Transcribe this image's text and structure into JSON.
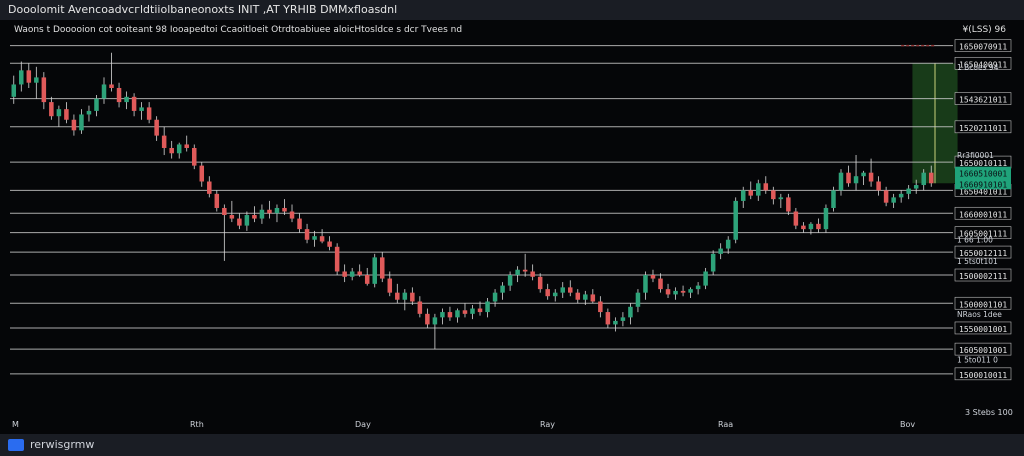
{
  "window": {
    "title": "Dooolomit Avencoadvcгldtiiolbaneonoxts INIT ,AT YRHIB DMMxfloasdnl"
  },
  "toolbar": {
    "legend_text": "Waons  t  Dooooion  cot ooiteant  98 Iooapedtoi  Ccaoitloeit  Otrdtoabiuee  aloicHtosldce  s dcr  Tvees  nd"
  },
  "footer": {
    "brand": "rerwisgrmw"
  },
  "chart_data": {
    "type": "candlestick",
    "price_axis_header": "¥(LSS) 96",
    "price_levels": [
      {
        "label": "1650070911",
        "y": 1650
      },
      {
        "label": "1650400911",
        "y": 1600
      },
      {
        "label": "1543621011",
        "y": 1500
      },
      {
        "label": "1520211011",
        "y": 1420
      },
      {
        "label": "1650010111",
        "y": 1320
      },
      {
        "label": "1650401011",
        "y": 1240
      },
      {
        "label": "1660001011",
        "y": 1175
      },
      {
        "label": "1605001111",
        "y": 1120
      },
      {
        "label": "1650012111",
        "y": 1065
      },
      {
        "label": "1500002111",
        "y": 1000
      },
      {
        "label": "1500001101",
        "y": 920
      },
      {
        "label": "1550001001",
        "y": 850
      },
      {
        "label": "1605001001",
        "y": 790
      },
      {
        "label": "1500010011",
        "y": 720
      }
    ],
    "side_notes": [
      {
        "text": "1 Bcoes 94",
        "y": 1590
      },
      {
        "text": "Rr3fi0001",
        "y": 1340
      },
      {
        "text": "1 66 1:00",
        "y": 1100
      },
      {
        "text": "1 5ts0t101",
        "y": 1040
      },
      {
        "text": "NRaos 1dee",
        "y": 890
      },
      {
        "text": "1 5to011 0",
        "y": 760
      }
    ],
    "highlight_labels": [
      {
        "text": "1660510001",
        "y": 1290
      },
      {
        "text": "1660910101",
        "y": 1260
      }
    ],
    "x_labels": [
      "M",
      "Rth",
      "Day",
      "Ray",
      "Raa",
      "Bov"
    ],
    "x_right_label": "3 Stebs 100",
    "ylim": [
      660,
      1700
    ],
    "colors": {
      "up": "#2ea37a",
      "down": "#e05a5a",
      "grid": "#c8c8c8",
      "target": "#8a2f2f",
      "zone": "#1f4d1f",
      "highlight": "#1fa37a"
    },
    "candles": [
      {
        "o": 1505,
        "h": 1565,
        "l": 1485,
        "c": 1540
      },
      {
        "o": 1540,
        "h": 1605,
        "l": 1520,
        "c": 1580
      },
      {
        "o": 1580,
        "h": 1600,
        "l": 1530,
        "c": 1545
      },
      {
        "o": 1545,
        "h": 1590,
        "l": 1500,
        "c": 1560
      },
      {
        "o": 1560,
        "h": 1575,
        "l": 1470,
        "c": 1490
      },
      {
        "o": 1490,
        "h": 1505,
        "l": 1440,
        "c": 1450
      },
      {
        "o": 1450,
        "h": 1480,
        "l": 1420,
        "c": 1470
      },
      {
        "o": 1470,
        "h": 1490,
        "l": 1430,
        "c": 1440
      },
      {
        "o": 1440,
        "h": 1455,
        "l": 1395,
        "c": 1410
      },
      {
        "o": 1410,
        "h": 1470,
        "l": 1400,
        "c": 1455
      },
      {
        "o": 1455,
        "h": 1480,
        "l": 1435,
        "c": 1465
      },
      {
        "o": 1465,
        "h": 1510,
        "l": 1450,
        "c": 1500
      },
      {
        "o": 1500,
        "h": 1560,
        "l": 1485,
        "c": 1540
      },
      {
        "o": 1540,
        "h": 1630,
        "l": 1520,
        "c": 1530
      },
      {
        "o": 1530,
        "h": 1545,
        "l": 1475,
        "c": 1490
      },
      {
        "o": 1490,
        "h": 1520,
        "l": 1470,
        "c": 1505
      },
      {
        "o": 1505,
        "h": 1515,
        "l": 1450,
        "c": 1465
      },
      {
        "o": 1465,
        "h": 1490,
        "l": 1440,
        "c": 1475
      },
      {
        "o": 1475,
        "h": 1490,
        "l": 1430,
        "c": 1440
      },
      {
        "o": 1440,
        "h": 1450,
        "l": 1380,
        "c": 1395
      },
      {
        "o": 1395,
        "h": 1420,
        "l": 1340,
        "c": 1360
      },
      {
        "o": 1360,
        "h": 1380,
        "l": 1330,
        "c": 1345
      },
      {
        "o": 1345,
        "h": 1375,
        "l": 1330,
        "c": 1370
      },
      {
        "o": 1370,
        "h": 1395,
        "l": 1350,
        "c": 1360
      },
      {
        "o": 1360,
        "h": 1370,
        "l": 1300,
        "c": 1310
      },
      {
        "o": 1310,
        "h": 1320,
        "l": 1250,
        "c": 1265
      },
      {
        "o": 1265,
        "h": 1280,
        "l": 1220,
        "c": 1230
      },
      {
        "o": 1230,
        "h": 1240,
        "l": 1180,
        "c": 1190
      },
      {
        "o": 1190,
        "h": 1200,
        "l": 1040,
        "c": 1170
      },
      {
        "o": 1170,
        "h": 1210,
        "l": 1150,
        "c": 1160
      },
      {
        "o": 1160,
        "h": 1175,
        "l": 1130,
        "c": 1140
      },
      {
        "o": 1140,
        "h": 1180,
        "l": 1125,
        "c": 1170
      },
      {
        "o": 1170,
        "h": 1195,
        "l": 1150,
        "c": 1160
      },
      {
        "o": 1160,
        "h": 1200,
        "l": 1145,
        "c": 1185
      },
      {
        "o": 1185,
        "h": 1210,
        "l": 1160,
        "c": 1175
      },
      {
        "o": 1175,
        "h": 1200,
        "l": 1150,
        "c": 1190
      },
      {
        "o": 1190,
        "h": 1215,
        "l": 1170,
        "c": 1180
      },
      {
        "o": 1180,
        "h": 1200,
        "l": 1150,
        "c": 1160
      },
      {
        "o": 1160,
        "h": 1175,
        "l": 1120,
        "c": 1130
      },
      {
        "o": 1130,
        "h": 1145,
        "l": 1090,
        "c": 1100
      },
      {
        "o": 1100,
        "h": 1125,
        "l": 1080,
        "c": 1110
      },
      {
        "o": 1110,
        "h": 1130,
        "l": 1090,
        "c": 1095
      },
      {
        "o": 1095,
        "h": 1110,
        "l": 1070,
        "c": 1080
      },
      {
        "o": 1080,
        "h": 1090,
        "l": 1000,
        "c": 1010
      },
      {
        "o": 1010,
        "h": 1030,
        "l": 980,
        "c": 995
      },
      {
        "o": 995,
        "h": 1020,
        "l": 985,
        "c": 1010
      },
      {
        "o": 1010,
        "h": 1030,
        "l": 995,
        "c": 1000
      },
      {
        "o": 1000,
        "h": 1020,
        "l": 970,
        "c": 975
      },
      {
        "o": 975,
        "h": 1060,
        "l": 965,
        "c": 1050
      },
      {
        "o": 1050,
        "h": 1065,
        "l": 980,
        "c": 990
      },
      {
        "o": 990,
        "h": 1010,
        "l": 940,
        "c": 950
      },
      {
        "o": 950,
        "h": 975,
        "l": 920,
        "c": 930
      },
      {
        "o": 930,
        "h": 960,
        "l": 900,
        "c": 950
      },
      {
        "o": 950,
        "h": 965,
        "l": 915,
        "c": 925
      },
      {
        "o": 925,
        "h": 940,
        "l": 880,
        "c": 890
      },
      {
        "o": 890,
        "h": 905,
        "l": 850,
        "c": 860
      },
      {
        "o": 860,
        "h": 890,
        "l": 790,
        "c": 880
      },
      {
        "o": 880,
        "h": 905,
        "l": 860,
        "c": 895
      },
      {
        "o": 895,
        "h": 910,
        "l": 870,
        "c": 880
      },
      {
        "o": 880,
        "h": 905,
        "l": 865,
        "c": 900
      },
      {
        "o": 900,
        "h": 920,
        "l": 880,
        "c": 890
      },
      {
        "o": 890,
        "h": 915,
        "l": 875,
        "c": 905
      },
      {
        "o": 905,
        "h": 925,
        "l": 885,
        "c": 895
      },
      {
        "o": 895,
        "h": 935,
        "l": 880,
        "c": 925
      },
      {
        "o": 925,
        "h": 960,
        "l": 910,
        "c": 950
      },
      {
        "o": 950,
        "h": 980,
        "l": 930,
        "c": 970
      },
      {
        "o": 970,
        "h": 1010,
        "l": 955,
        "c": 1000
      },
      {
        "o": 1000,
        "h": 1025,
        "l": 980,
        "c": 1015
      },
      {
        "o": 1015,
        "h": 1060,
        "l": 995,
        "c": 1010
      },
      {
        "o": 1010,
        "h": 1030,
        "l": 985,
        "c": 995
      },
      {
        "o": 995,
        "h": 1005,
        "l": 950,
        "c": 960
      },
      {
        "o": 960,
        "h": 975,
        "l": 930,
        "c": 940
      },
      {
        "o": 940,
        "h": 960,
        "l": 925,
        "c": 950
      },
      {
        "o": 950,
        "h": 980,
        "l": 935,
        "c": 965
      },
      {
        "o": 965,
        "h": 985,
        "l": 940,
        "c": 950
      },
      {
        "o": 950,
        "h": 960,
        "l": 920,
        "c": 930
      },
      {
        "o": 930,
        "h": 955,
        "l": 915,
        "c": 945
      },
      {
        "o": 945,
        "h": 960,
        "l": 920,
        "c": 925
      },
      {
        "o": 925,
        "h": 940,
        "l": 880,
        "c": 895
      },
      {
        "o": 895,
        "h": 905,
        "l": 850,
        "c": 860
      },
      {
        "o": 860,
        "h": 880,
        "l": 840,
        "c": 870
      },
      {
        "o": 870,
        "h": 895,
        "l": 855,
        "c": 880
      },
      {
        "o": 880,
        "h": 920,
        "l": 860,
        "c": 910
      },
      {
        "o": 910,
        "h": 960,
        "l": 895,
        "c": 950
      },
      {
        "o": 950,
        "h": 1010,
        "l": 930,
        "c": 1000
      },
      {
        "o": 1000,
        "h": 1015,
        "l": 980,
        "c": 990
      },
      {
        "o": 990,
        "h": 1005,
        "l": 950,
        "c": 960
      },
      {
        "o": 960,
        "h": 975,
        "l": 935,
        "c": 945
      },
      {
        "o": 945,
        "h": 965,
        "l": 930,
        "c": 955
      },
      {
        "o": 955,
        "h": 970,
        "l": 940,
        "c": 950
      },
      {
        "o": 950,
        "h": 965,
        "l": 935,
        "c": 960
      },
      {
        "o": 960,
        "h": 980,
        "l": 945,
        "c": 970
      },
      {
        "o": 970,
        "h": 1020,
        "l": 960,
        "c": 1010
      },
      {
        "o": 1010,
        "h": 1070,
        "l": 1000,
        "c": 1060
      },
      {
        "o": 1060,
        "h": 1090,
        "l": 1045,
        "c": 1075
      },
      {
        "o": 1075,
        "h": 1110,
        "l": 1060,
        "c": 1100
      },
      {
        "o": 1100,
        "h": 1220,
        "l": 1090,
        "c": 1210
      },
      {
        "o": 1210,
        "h": 1250,
        "l": 1190,
        "c": 1240
      },
      {
        "o": 1240,
        "h": 1265,
        "l": 1215,
        "c": 1225
      },
      {
        "o": 1225,
        "h": 1270,
        "l": 1210,
        "c": 1260
      },
      {
        "o": 1260,
        "h": 1280,
        "l": 1230,
        "c": 1240
      },
      {
        "o": 1240,
        "h": 1250,
        "l": 1200,
        "c": 1215
      },
      {
        "o": 1215,
        "h": 1230,
        "l": 1190,
        "c": 1220
      },
      {
        "o": 1220,
        "h": 1230,
        "l": 1170,
        "c": 1180
      },
      {
        "o": 1180,
        "h": 1190,
        "l": 1130,
        "c": 1140
      },
      {
        "o": 1140,
        "h": 1150,
        "l": 1120,
        "c": 1130
      },
      {
        "o": 1130,
        "h": 1150,
        "l": 1115,
        "c": 1145
      },
      {
        "o": 1145,
        "h": 1160,
        "l": 1120,
        "c": 1130
      },
      {
        "o": 1130,
        "h": 1200,
        "l": 1120,
        "c": 1190
      },
      {
        "o": 1190,
        "h": 1250,
        "l": 1180,
        "c": 1240
      },
      {
        "o": 1240,
        "h": 1300,
        "l": 1225,
        "c": 1290
      },
      {
        "o": 1290,
        "h": 1310,
        "l": 1250,
        "c": 1260
      },
      {
        "o": 1260,
        "h": 1340,
        "l": 1240,
        "c": 1280
      },
      {
        "o": 1280,
        "h": 1295,
        "l": 1255,
        "c": 1290
      },
      {
        "o": 1290,
        "h": 1330,
        "l": 1250,
        "c": 1265
      },
      {
        "o": 1265,
        "h": 1280,
        "l": 1225,
        "c": 1240
      },
      {
        "o": 1240,
        "h": 1250,
        "l": 1195,
        "c": 1205
      },
      {
        "o": 1205,
        "h": 1230,
        "l": 1190,
        "c": 1220
      },
      {
        "o": 1220,
        "h": 1240,
        "l": 1205,
        "c": 1230
      },
      {
        "o": 1230,
        "h": 1255,
        "l": 1215,
        "c": 1245
      },
      {
        "o": 1245,
        "h": 1270,
        "l": 1230,
        "c": 1255
      },
      {
        "o": 1255,
        "h": 1300,
        "l": 1240,
        "c": 1290
      },
      {
        "o": 1290,
        "h": 1310,
        "l": 1250,
        "c": 1260
      }
    ],
    "target_level": 1650,
    "zone": {
      "from_index": 120,
      "to_index": 125,
      "top": 1600,
      "bottom": 1260
    }
  }
}
